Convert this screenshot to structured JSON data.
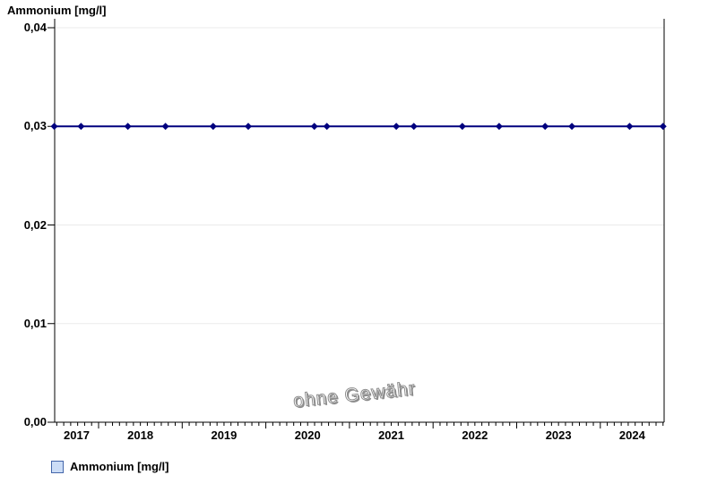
{
  "title": "Ammonium [mg/l]",
  "watermark": "ohne Gewähr",
  "legend": {
    "label": "Ammonium [mg/l]",
    "swatch_fill": "#cbdcf6",
    "swatch_border": "#4466aa"
  },
  "colors": {
    "series": "#00007e",
    "grid": "#ebebeb",
    "axis": "#000000",
    "text": "#000000",
    "watermark": "#8f8f8f"
  },
  "chart_data": {
    "type": "line",
    "title": "Ammonium [mg/l]",
    "xlabel": "",
    "ylabel": "Ammonium [mg/l]",
    "ylim": [
      0,
      0.04
    ],
    "xlim": [
      2017.475,
      2024.763
    ],
    "grid": "horizontal",
    "legend_position": "bottom-left",
    "yticks": [
      {
        "value": 0.0,
        "label": "0,00"
      },
      {
        "value": 0.01,
        "label": "0,01"
      },
      {
        "value": 0.02,
        "label": "0,02"
      },
      {
        "value": 0.03,
        "label": "0,03"
      },
      {
        "value": 0.04,
        "label": "0,04"
      }
    ],
    "xtick_labels": [
      "2017",
      "2018",
      "2019",
      "2020",
      "2021",
      "2022",
      "2023",
      "2024"
    ],
    "xtick_major_years": [
      2018,
      2019,
      2020,
      2021,
      2022,
      2023,
      2024
    ],
    "series": [
      {
        "name": "Ammonium [mg/l]",
        "marker": "diamond",
        "x": [
          2017.47,
          2017.79,
          2018.35,
          2018.8,
          2019.37,
          2019.79,
          2020.58,
          2020.73,
          2021.56,
          2021.77,
          2022.35,
          2022.79,
          2023.34,
          2023.66,
          2024.35,
          2024.75
        ],
        "y": [
          0.03,
          0.03,
          0.03,
          0.03,
          0.03,
          0.03,
          0.03,
          0.03,
          0.03,
          0.03,
          0.03,
          0.03,
          0.03,
          0.03,
          0.03,
          0.03
        ]
      }
    ]
  }
}
